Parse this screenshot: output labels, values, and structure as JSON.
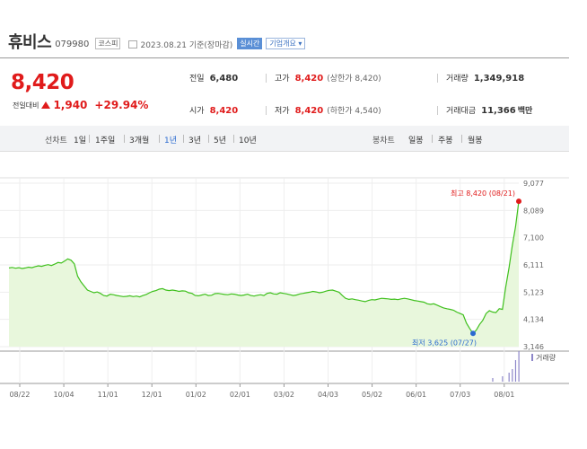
{
  "header": {
    "name": "휴비스",
    "code": "079980",
    "market_badge": "코스피",
    "date_text": "2023.08.21 기준(장마감)",
    "realtime_label": "실시간",
    "company_info_label": "기업개요 ▾"
  },
  "quote": {
    "price": "8,420",
    "change_label": "전일대비",
    "change_value": "1,940",
    "change_pct": "+29.94%",
    "prev_label": "전일",
    "prev_value": "6,480",
    "high_label": "고가",
    "high_value": "8,420",
    "high_sub": "(상한가 8,420)",
    "volume_label": "거래량",
    "volume_value": "1,349,918",
    "open_label": "시가",
    "open_value": "8,420",
    "low_label": "저가",
    "low_value": "8,420",
    "low_sub": "(하한가 4,540)",
    "amount_label": "거래대금",
    "amount_value": "11,366",
    "amount_unit": "백만"
  },
  "periods": {
    "line_label": "선차트",
    "items": [
      "1일",
      "1주일",
      "3개월",
      "1년",
      "3년",
      "5년",
      "10년"
    ],
    "selected": "1년",
    "candle_label": "봉차트",
    "candle_items": [
      "일봉",
      "주봉",
      "월봉"
    ]
  },
  "colors": {
    "up": "#e01b1b",
    "line": "#3fc01d",
    "fill": "#e8f7dc",
    "selected": "#2a6ad0"
  },
  "chart_data": {
    "type": "area",
    "x_ticks": [
      "08/22",
      "10/04",
      "11/01",
      "12/01",
      "01/02",
      "02/01",
      "03/02",
      "04/03",
      "05/02",
      "06/01",
      "07/03",
      "08/01"
    ],
    "y_ticks": [
      "9,077",
      "8,089",
      "7,100",
      "6,111",
      "5,123",
      "4,134",
      "3,146"
    ],
    "ylim": [
      3146,
      9077
    ],
    "max_label": "최고 8,420 (08/21)",
    "min_label": "최저 3,625 (07/27)",
    "volume_label": "거래량",
    "values": [
      6000,
      6020,
      5990,
      6010,
      5980,
      6000,
      6030,
      6010,
      6050,
      6080,
      6060,
      6100,
      6120,
      6090,
      6140,
      6200,
      6180,
      6250,
      6330,
      6280,
      6150,
      5700,
      5500,
      5350,
      5200,
      5150,
      5100,
      5130,
      5080,
      5000,
      4980,
      5050,
      5030,
      5000,
      4980,
      4960,
      4970,
      4990,
      4960,
      4980,
      4950,
      5000,
      5040,
      5100,
      5150,
      5180,
      5230,
      5250,
      5200,
      5180,
      5200,
      5180,
      5150,
      5170,
      5160,
      5100,
      5080,
      5000,
      4990,
      5020,
      5050,
      5000,
      5010,
      5070,
      5080,
      5060,
      5040,
      5030,
      5060,
      5050,
      5020,
      5000,
      5020,
      5050,
      5000,
      4980,
      5010,
      5030,
      5000,
      5080,
      5100,
      5060,
      5050,
      5100,
      5080,
      5060,
      5030,
      5000,
      5020,
      5060,
      5080,
      5100,
      5120,
      5150,
      5130,
      5100,
      5120,
      5160,
      5190,
      5200,
      5160,
      5120,
      5000,
      4900,
      4860,
      4880,
      4850,
      4830,
      4800,
      4780,
      4820,
      4850,
      4840,
      4870,
      4900,
      4890,
      4880,
      4860,
      4870,
      4850,
      4880,
      4900,
      4880,
      4850,
      4820,
      4800,
      4780,
      4760,
      4700,
      4680,
      4700,
      4650,
      4600,
      4550,
      4520,
      4500,
      4470,
      4400,
      4350,
      4300,
      4000,
      3800,
      3625,
      3750,
      3950,
      4100,
      4350,
      4450,
      4400,
      4380,
      4520,
      4500,
      5300,
      6000,
      6800,
      7500,
      8420
    ]
  }
}
